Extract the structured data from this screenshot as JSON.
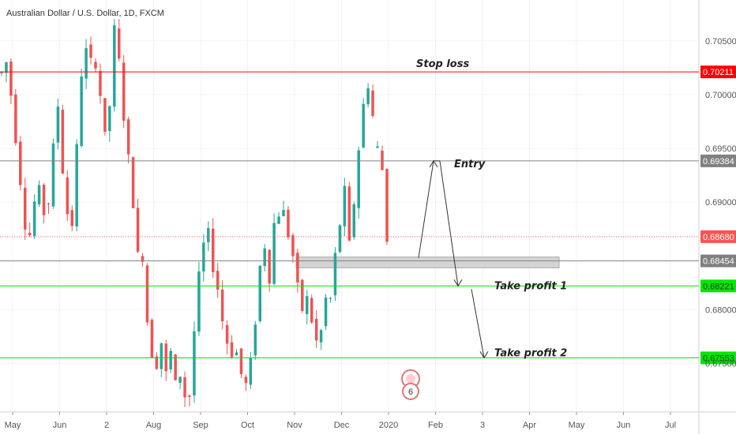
{
  "title": "Australian Dollar / U.S. Dollar, 1D, FXCM",
  "chart_data": {
    "type": "candlestick",
    "title": "Australian Dollar / U.S. Dollar, 1D, FXCM",
    "y_axis_side": "right",
    "ylim": [
      0.6705,
      0.7088
    ],
    "y_ticks": [
      "0.70500",
      "0.70000",
      "0.69500",
      "0.69000",
      "0.68000",
      "0.67500"
    ],
    "x_ticks": [
      "May",
      "Jun",
      "2",
      "Aug",
      "Sep",
      "Oct",
      "Nov",
      "Dec",
      "2020",
      "Feb",
      "3",
      "Apr",
      "May",
      "Jun",
      "Jul"
    ],
    "series": [
      {
        "x": "May",
        "values": [
          0.702,
          0.703,
          0.7,
          0.696,
          0.692,
          0.688,
          0.687,
          0.69,
          0.691,
          0.689
        ]
      },
      {
        "x": "Jun",
        "values": [
          0.69,
          0.695,
          0.699,
          0.693,
          0.689,
          0.688,
          0.695,
          0.702,
          0.704,
          0.703
        ]
      },
      {
        "x": "2",
        "values": [
          0.703,
          0.7,
          0.696,
          0.699,
          0.706,
          0.703,
          0.698,
          0.694,
          0.69,
          0.685
        ]
      },
      {
        "x": "Aug",
        "values": [
          0.685,
          0.679,
          0.676,
          0.675,
          0.677,
          0.674,
          0.676,
          0.673,
          0.674,
          0.672
        ]
      },
      {
        "x": "Sep",
        "values": [
          0.672,
          0.678,
          0.683,
          0.686,
          0.687,
          0.684,
          0.682,
          0.679,
          0.677,
          0.676
        ]
      },
      {
        "x": "Oct",
        "values": [
          0.676,
          0.674,
          0.673,
          0.675,
          0.679,
          0.684,
          0.686,
          0.683,
          0.688,
          0.689
        ]
      },
      {
        "x": "Nov",
        "values": [
          0.689,
          0.687,
          0.685,
          0.682,
          0.68,
          0.681,
          0.679,
          0.677,
          0.678,
          0.681
        ]
      },
      {
        "x": "Dec",
        "values": [
          0.681,
          0.685,
          0.688,
          0.691,
          0.686,
          0.69,
          0.695,
          0.699,
          0.701,
          0.698
        ]
      },
      {
        "x": "2020",
        "values": [
          0.695,
          0.693,
          0.6868
        ]
      }
    ],
    "horizontal_levels": [
      {
        "price": 0.70211,
        "label": "0.70211",
        "annotation": "Stop loss",
        "color": "#ff0000"
      },
      {
        "price": 0.69384,
        "label": "0.69384",
        "annotation": "Entry",
        "color": "#808080"
      },
      {
        "price": 0.6868,
        "label": "0.68680",
        "annotation": "",
        "color": "#ff5252"
      },
      {
        "price": 0.68454,
        "label": "0.68454",
        "annotation": "",
        "color": "#808080"
      },
      {
        "price": 0.68221,
        "label": "0.68221",
        "annotation": "Take profit 1",
        "color": "#00e600"
      },
      {
        "price": 0.67553,
        "label": "0.67553",
        "annotation": "Take profit 2",
        "color": "#00e600"
      }
    ],
    "zone": {
      "from": 0.6839,
      "to": 0.6849
    },
    "event_badge": "6",
    "colors": {
      "up": "#26a69a",
      "down": "#ef5350",
      "green": "#00e600"
    }
  }
}
